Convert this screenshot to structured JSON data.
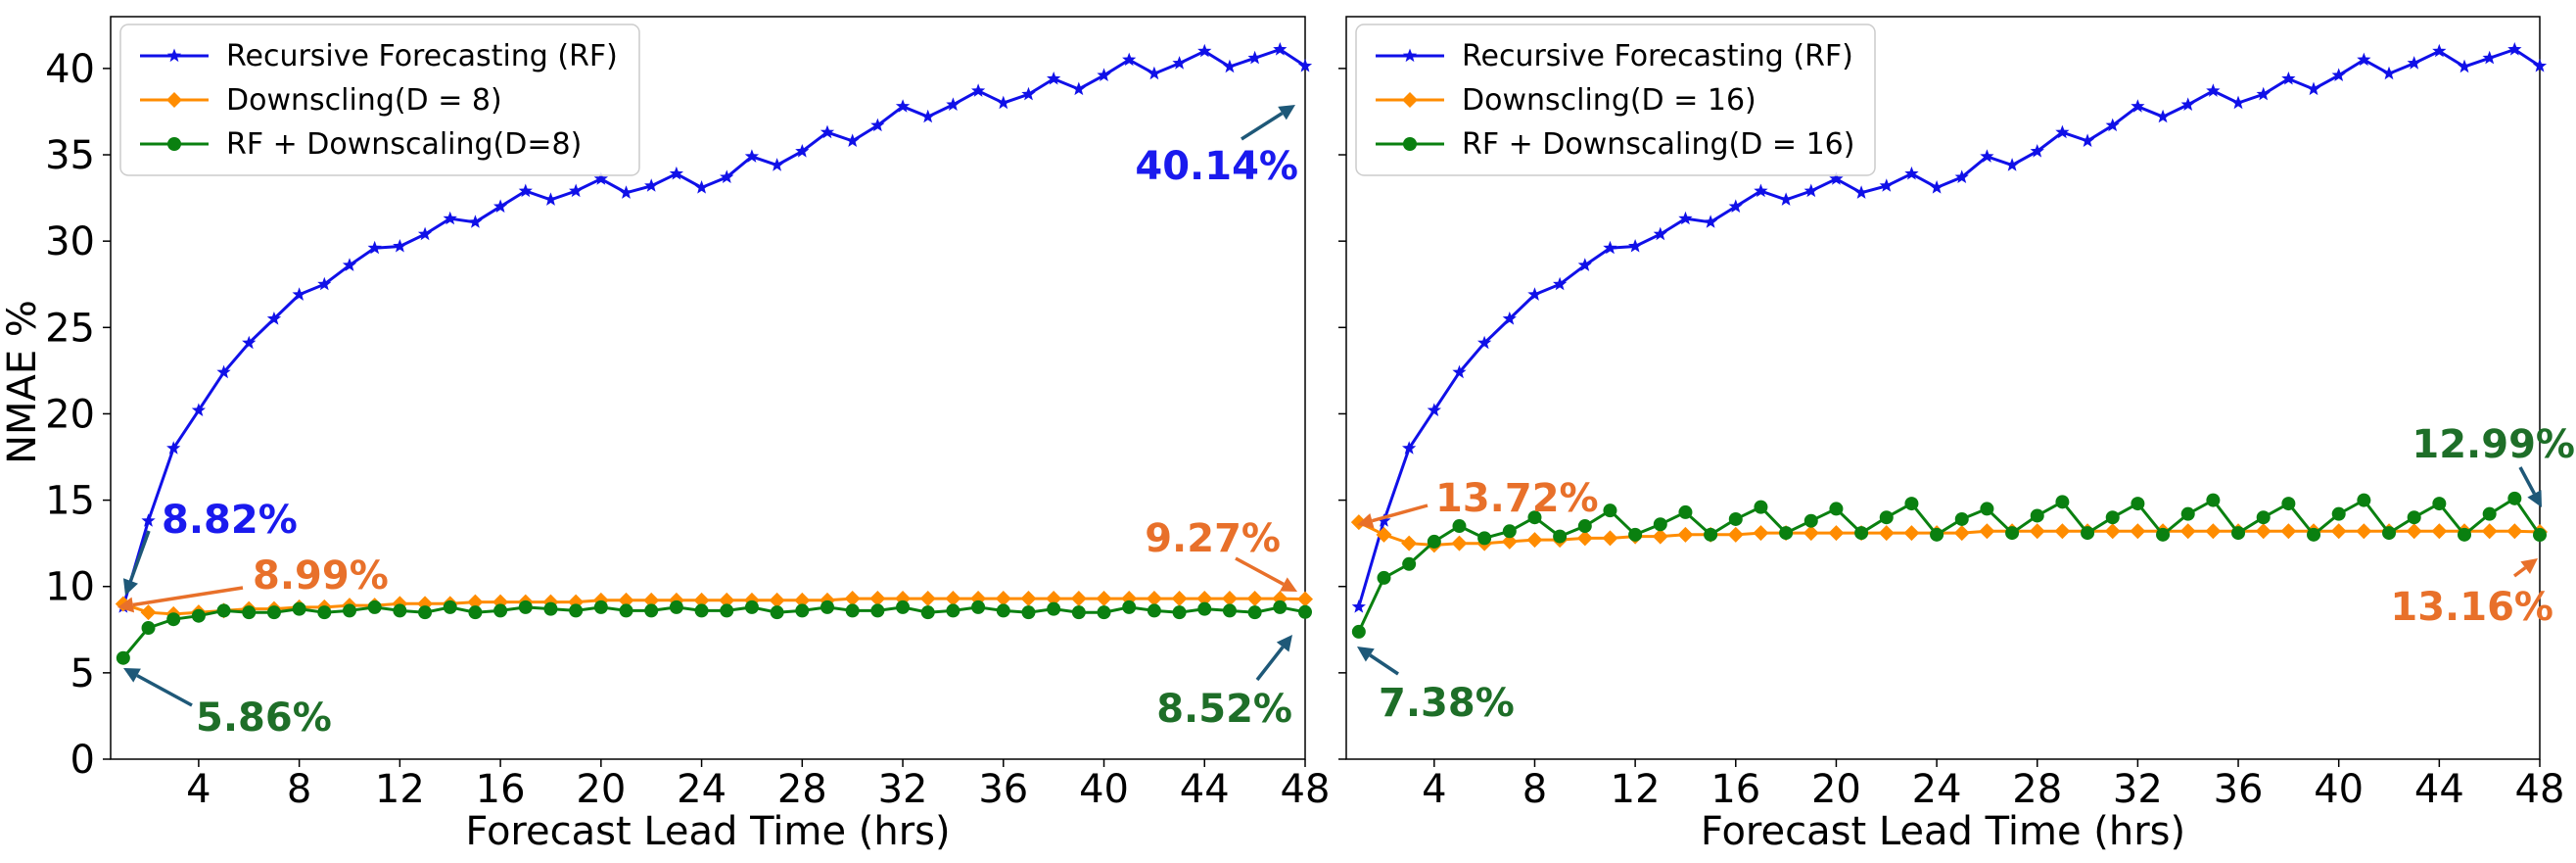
{
  "figure": {
    "ylabel": "NMAE %",
    "xlabel": "Forecast Lead Time (hrs)"
  },
  "colors": {
    "rf": "#1010e8",
    "down": "#ff8c00",
    "combo": "#0a8010",
    "ann_blue": "#1a1aee",
    "ann_orange": "#e8702a",
    "ann_green": "#1e6e28",
    "arrow_teal": "#1e5878"
  },
  "chart_data": [
    {
      "type": "line",
      "xlabel": "Forecast Lead Time (hrs)",
      "ylabel": "NMAE %",
      "xlim": [
        0.5,
        48
      ],
      "ylim": [
        0,
        43
      ],
      "xticks": [
        4,
        8,
        12,
        16,
        20,
        24,
        28,
        32,
        36,
        40,
        44,
        48
      ],
      "yticks": [
        0,
        5,
        10,
        15,
        20,
        25,
        30,
        35,
        40
      ],
      "legend_position": "top-left",
      "grid": false,
      "x": [
        1,
        2,
        3,
        4,
        5,
        6,
        7,
        8,
        9,
        10,
        11,
        12,
        13,
        14,
        15,
        16,
        17,
        18,
        19,
        20,
        21,
        22,
        23,
        24,
        25,
        26,
        27,
        28,
        29,
        30,
        31,
        32,
        33,
        34,
        35,
        36,
        37,
        38,
        39,
        40,
        41,
        42,
        43,
        44,
        45,
        46,
        47,
        48
      ],
      "series": [
        {
          "name": "Recursive Forecasting (RF)",
          "key": "rf",
          "values": [
            8.82,
            13.8,
            18.0,
            20.2,
            22.4,
            24.1,
            25.5,
            26.9,
            27.5,
            28.6,
            29.6,
            29.7,
            30.4,
            31.3,
            31.1,
            32.0,
            32.9,
            32.4,
            32.9,
            33.6,
            32.8,
            33.2,
            33.9,
            33.1,
            33.7,
            34.9,
            34.4,
            35.2,
            36.3,
            35.8,
            36.7,
            37.8,
            37.2,
            37.9,
            38.7,
            38.0,
            38.5,
            39.4,
            38.8,
            39.6,
            40.5,
            39.7,
            40.3,
            41.0,
            40.1,
            40.6,
            41.1,
            40.14
          ]
        },
        {
          "name": "Downscling(D = 8)",
          "key": "down",
          "values": [
            8.99,
            8.5,
            8.4,
            8.5,
            8.6,
            8.7,
            8.7,
            8.8,
            8.8,
            8.9,
            8.9,
            9.0,
            9.0,
            9.0,
            9.1,
            9.1,
            9.1,
            9.1,
            9.1,
            9.2,
            9.2,
            9.2,
            9.2,
            9.2,
            9.2,
            9.2,
            9.2,
            9.2,
            9.2,
            9.3,
            9.3,
            9.3,
            9.3,
            9.3,
            9.3,
            9.3,
            9.3,
            9.3,
            9.3,
            9.3,
            9.3,
            9.3,
            9.3,
            9.3,
            9.3,
            9.3,
            9.3,
            9.27
          ]
        },
        {
          "name": "RF + Downscaling(D=8)",
          "key": "combo",
          "values": [
            5.86,
            7.6,
            8.1,
            8.3,
            8.6,
            8.5,
            8.5,
            8.7,
            8.5,
            8.6,
            8.8,
            8.6,
            8.5,
            8.8,
            8.5,
            8.6,
            8.8,
            8.7,
            8.6,
            8.8,
            8.6,
            8.6,
            8.8,
            8.6,
            8.6,
            8.8,
            8.5,
            8.6,
            8.8,
            8.6,
            8.6,
            8.8,
            8.5,
            8.6,
            8.8,
            8.6,
            8.5,
            8.7,
            8.5,
            8.5,
            8.8,
            8.6,
            8.5,
            8.7,
            8.6,
            8.5,
            8.8,
            8.52
          ]
        }
      ],
      "annotations": [
        {
          "text": "40.14%",
          "color_key": "ann_blue"
        },
        {
          "text": "8.82%",
          "color_key": "ann_blue"
        },
        {
          "text": "8.99%",
          "color_key": "ann_orange"
        },
        {
          "text": "9.27%",
          "color_key": "ann_orange"
        },
        {
          "text": "5.86%",
          "color_key": "ann_green"
        },
        {
          "text": "8.52%",
          "color_key": "ann_green"
        }
      ]
    },
    {
      "type": "line",
      "xlabel": "Forecast Lead Time (hrs)",
      "ylabel": "",
      "xlim": [
        0.5,
        48
      ],
      "ylim": [
        0,
        43
      ],
      "xticks": [
        4,
        8,
        12,
        16,
        20,
        24,
        28,
        32,
        36,
        40,
        44,
        48
      ],
      "yticks": [
        0,
        5,
        10,
        15,
        20,
        25,
        30,
        35,
        40
      ],
      "legend_position": "top-left",
      "grid": false,
      "x": [
        1,
        2,
        3,
        4,
        5,
        6,
        7,
        8,
        9,
        10,
        11,
        12,
        13,
        14,
        15,
        16,
        17,
        18,
        19,
        20,
        21,
        22,
        23,
        24,
        25,
        26,
        27,
        28,
        29,
        30,
        31,
        32,
        33,
        34,
        35,
        36,
        37,
        38,
        39,
        40,
        41,
        42,
        43,
        44,
        45,
        46,
        47,
        48
      ],
      "series": [
        {
          "name": "Recursive Forecasting (RF)",
          "key": "rf",
          "values": [
            8.82,
            13.8,
            18.0,
            20.2,
            22.4,
            24.1,
            25.5,
            26.9,
            27.5,
            28.6,
            29.6,
            29.7,
            30.4,
            31.3,
            31.1,
            32.0,
            32.9,
            32.4,
            32.9,
            33.6,
            32.8,
            33.2,
            33.9,
            33.1,
            33.7,
            34.9,
            34.4,
            35.2,
            36.3,
            35.8,
            36.7,
            37.8,
            37.2,
            37.9,
            38.7,
            38.0,
            38.5,
            39.4,
            38.8,
            39.6,
            40.5,
            39.7,
            40.3,
            41.0,
            40.1,
            40.6,
            41.1,
            40.14
          ]
        },
        {
          "name": "Downscling(D = 16)",
          "key": "down",
          "values": [
            13.72,
            13.0,
            12.5,
            12.4,
            12.5,
            12.5,
            12.6,
            12.7,
            12.7,
            12.8,
            12.8,
            12.9,
            12.9,
            13.0,
            13.0,
            13.0,
            13.1,
            13.1,
            13.1,
            13.1,
            13.1,
            13.1,
            13.1,
            13.1,
            13.1,
            13.2,
            13.2,
            13.2,
            13.2,
            13.2,
            13.2,
            13.2,
            13.2,
            13.2,
            13.2,
            13.2,
            13.2,
            13.2,
            13.2,
            13.2,
            13.2,
            13.2,
            13.2,
            13.2,
            13.2,
            13.2,
            13.2,
            13.16
          ]
        },
        {
          "name": "RF + Downscaling(D = 16)",
          "key": "combo",
          "values": [
            7.38,
            10.5,
            11.3,
            12.6,
            13.5,
            12.8,
            13.2,
            14.0,
            12.9,
            13.5,
            14.4,
            13.0,
            13.6,
            14.3,
            13.0,
            13.9,
            14.6,
            13.1,
            13.8,
            14.5,
            13.1,
            14.0,
            14.8,
            13.0,
            13.9,
            14.5,
            13.1,
            14.1,
            14.9,
            13.1,
            14.0,
            14.8,
            13.0,
            14.2,
            15.0,
            13.1,
            14.0,
            14.8,
            13.0,
            14.2,
            15.0,
            13.1,
            14.0,
            14.8,
            13.0,
            14.2,
            15.1,
            12.99
          ]
        }
      ],
      "annotations": [
        {
          "text": "13.72%",
          "color_key": "ann_orange"
        },
        {
          "text": "7.38%",
          "color_key": "ann_green"
        },
        {
          "text": "12.99%",
          "color_key": "ann_green"
        },
        {
          "text": "13.16%",
          "color_key": "ann_orange"
        }
      ]
    }
  ]
}
